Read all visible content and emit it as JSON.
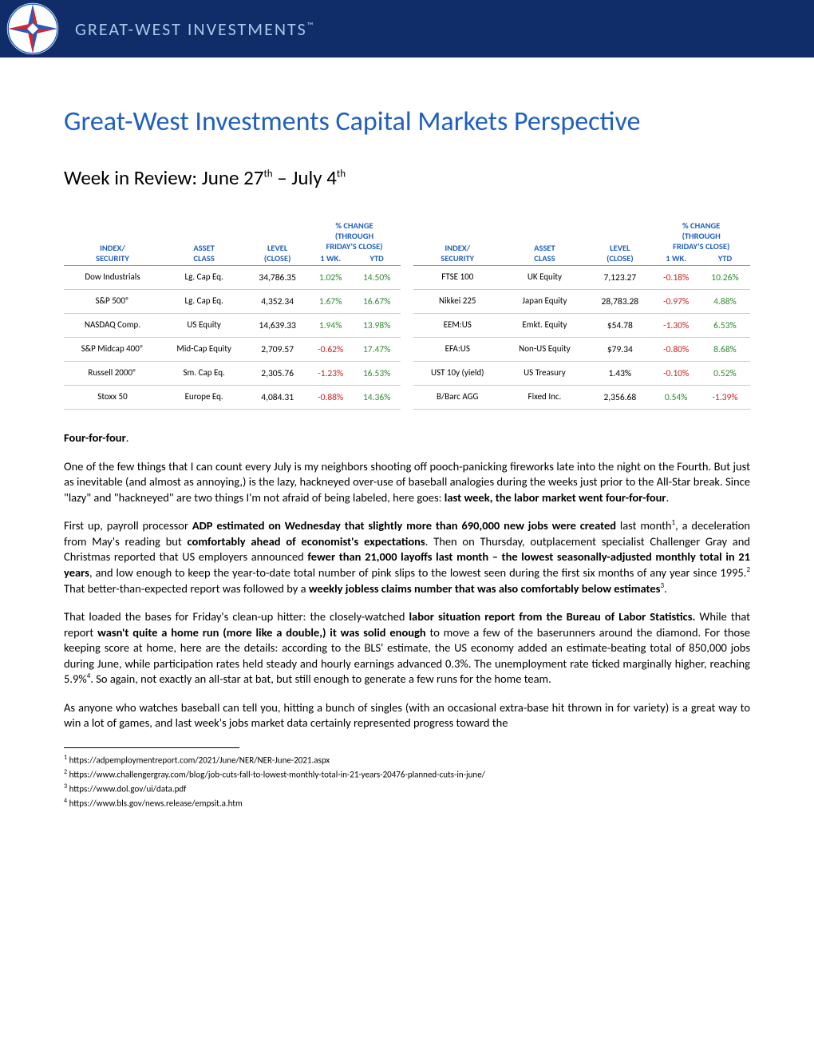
{
  "brand": "GREAT-WEST INVESTMENTS",
  "main_title": "Great-West Investments Capital Markets Perspective",
  "subtitle_prefix": "Week in Review: June 27",
  "subtitle_mid": " – July 4",
  "table_headers": {
    "sec": "INDEX/\nSECURITY",
    "asset": "ASSET\nCLASS",
    "level": "LEVEL\n(CLOSE)",
    "change": "% CHANGE\n(THROUGH\nFRIDAY'S CLOSE)",
    "wk": "1 WK.",
    "ytd": "YTD"
  },
  "colors": {
    "header_bg": "#102d69",
    "brand_text": "#a9c7e8",
    "title": "#1f5fbf",
    "pos": "#2e8b2e",
    "neg": "#d02020",
    "logo_red": "#d9232e",
    "logo_blue": "#1f5fbf"
  },
  "left_rows": [
    {
      "sec": "Dow Industrials",
      "asset": "Lg. Cap Eq.",
      "level": "34,786.35",
      "wk": "1.02%",
      "wk_cls": "pos",
      "ytd": "14.50%",
      "ytd_cls": "pos"
    },
    {
      "sec": "S&P 500®",
      "asset": "Lg. Cap Eq.",
      "level": "4,352.34",
      "wk": "1.67%",
      "wk_cls": "pos",
      "ytd": "16.67%",
      "ytd_cls": "pos"
    },
    {
      "sec": "NASDAQ Comp.",
      "asset": "US Equity",
      "level": "14,639.33",
      "wk": "1.94%",
      "wk_cls": "pos",
      "ytd": "13.98%",
      "ytd_cls": "pos"
    },
    {
      "sec": "S&P Midcap 400®",
      "asset": "Mid-Cap Equity",
      "level": "2,709.57",
      "wk": "-0.62%",
      "wk_cls": "neg",
      "ytd": "17.47%",
      "ytd_cls": "pos"
    },
    {
      "sec": "Russell 2000®",
      "asset": "Sm. Cap Eq.",
      "level": "2,305.76",
      "wk": "-1.23%",
      "wk_cls": "neg",
      "ytd": "16.53%",
      "ytd_cls": "pos"
    },
    {
      "sec": "Stoxx 50",
      "asset": "Europe Eq.",
      "level": "4,084.31",
      "wk": "-0.88%",
      "wk_cls": "neg",
      "ytd": "14.36%",
      "ytd_cls": "pos"
    }
  ],
  "right_rows": [
    {
      "sec": "FTSE 100",
      "asset": "UK Equity",
      "level": "7,123.27",
      "wk": "-0.18%",
      "wk_cls": "neg",
      "ytd": "10.26%",
      "ytd_cls": "pos"
    },
    {
      "sec": "Nikkei 225",
      "asset": "Japan Equity",
      "level": "28,783.28",
      "wk": "-0.97%",
      "wk_cls": "neg",
      "ytd": "4.88%",
      "ytd_cls": "pos"
    },
    {
      "sec": "EEM:US",
      "asset": "Emkt. Equity",
      "level": "$54.78",
      "wk": "-1.30%",
      "wk_cls": "neg",
      "ytd": "6.53%",
      "ytd_cls": "pos"
    },
    {
      "sec": "EFA:US",
      "asset": "Non-US Equity",
      "level": "$79.34",
      "wk": "-0.80%",
      "wk_cls": "neg",
      "ytd": "8.68%",
      "ytd_cls": "pos"
    },
    {
      "sec": "UST 10y (yield)",
      "asset": "US Treasury",
      "level": "1.43%",
      "wk": "-0.10%",
      "wk_cls": "neg",
      "ytd": "0.52%",
      "ytd_cls": "pos"
    },
    {
      "sec": "B/Barc AGG",
      "asset": "Fixed Inc.",
      "level": "2,356.68",
      "wk": "0.54%",
      "wk_cls": "pos",
      "ytd": "-1.39%",
      "ytd_cls": "neg"
    }
  ],
  "lead": "Four-for-four",
  "p1a": "One of the few things that I can count every July is my neighbors shooting off pooch-panicking fireworks late into the night on the Fourth. But just as inevitable (and almost as annoying,) is the lazy, hackneyed over-use of baseball analogies during the weeks just prior to the All-Star break. Since \"lazy\" and \"hackneyed\" are two things I'm not afraid of being labeled, here goes: ",
  "p1b": "last week, the labor market went four-for-four",
  "p2a": "First up, payroll processor ",
  "p2b": "ADP estimated on Wednesday that slightly more than 690,000 new jobs were created",
  "p2c": " last month",
  "p2d": ", a deceleration from May's reading but ",
  "p2e": "comfortably ahead of economist's expectations",
  "p2f": ". Then on Thursday, outplacement specialist Challenger Gray and Christmas reported that US employers announced ",
  "p2g": "fewer than 21,000 layoffs last month – the lowest seasonally-adjusted monthly total in 21 years",
  "p2h": ", and low enough to keep the year-to-date total number of pink slips to the lowest seen during the first six months of any year since 1995.",
  "p2i": " That better-than-expected report was followed by a ",
  "p2j": "weekly jobless claims number that was also comfortably below estimates",
  "p3a": "That loaded the bases for Friday's clean-up hitter: the closely-watched ",
  "p3b": "labor situation report from the Bureau of Labor Statistics.",
  "p3c": " While that report ",
  "p3d": "wasn't quite a home run (more like a double,) it was solid enough",
  "p3e": " to move a few of the baserunners around the diamond. For those keeping score at home, here are the details: according to the BLS' estimate, the US economy added an estimate-beating total of 850,000 jobs during June, while participation rates held steady and hourly earnings advanced 0.3%. The unemployment rate ticked marginally higher, reaching 5.9%",
  "p3f": ".  So again, not exactly an all-star at bat, but still enough to generate a few runs for the home team.",
  "p4": "As anyone who watches baseball can tell you, hitting a bunch of singles (with an occasional extra-base hit thrown in for variety) is a great way to win a lot of games, and last week's jobs market data certainly represented progress toward the",
  "fn1": "https://adpemploymentreport.com/2021/June/NER/NER-June-2021.aspx",
  "fn2": "https://www.challengergray.com/blog/job-cuts-fall-to-lowest-monthly-total-in-21-years-20476-planned-cuts-in-june/",
  "fn3": "https://www.dol.gov/ui/data.pdf",
  "fn4": "https://www.bls.gov/news.release/empsit.a.htm"
}
